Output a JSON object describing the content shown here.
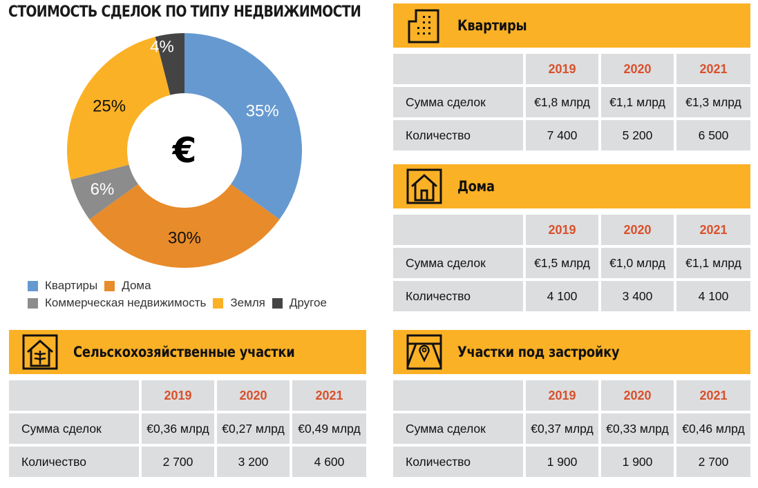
{
  "title": "СТОИМОСТЬ СДЕЛОК ПО ТИПУ НЕДВИЖИМОСТИ",
  "chart_data": {
    "type": "pie",
    "variant": "donut",
    "center_label": "€",
    "categories": [
      "Квартиры",
      "Дома",
      "Коммерческая недвижимость",
      "Земля",
      "Другое"
    ],
    "values": [
      35,
      30,
      6,
      25,
      4
    ],
    "labels": [
      "35%",
      "30%",
      "6%",
      "25%",
      "4%"
    ],
    "colors": [
      "#6699d0",
      "#e88b2a",
      "#8c8c8c",
      "#fbb125",
      "#444444"
    ],
    "label_colors": [
      "#ffffff",
      "#111111",
      "#ffffff",
      "#111111",
      "#ffffff"
    ],
    "legend_position": "bottom"
  },
  "legend": [
    {
      "label": "Квартиры",
      "color": "#6699d0"
    },
    {
      "label": "Дома",
      "color": "#e88b2a"
    },
    {
      "label": "Коммерческая недвижимость",
      "color": "#8c8c8c"
    },
    {
      "label": "Земля",
      "color": "#fbb125"
    },
    {
      "label": "Другое",
      "color": "#444444"
    }
  ],
  "colors": {
    "header_bar": "#fbb125",
    "cell": "#dcdddf",
    "year": "#d9502b"
  },
  "panels": [
    {
      "title": "Квартиры",
      "icon": "apartment-building-icon",
      "years": [
        "2019",
        "2020",
        "2021"
      ],
      "rows": [
        {
          "label": "Сумма сделок",
          "values": [
            "€1,8 млрд",
            "€1,1 млрд",
            "€1,3 млрд"
          ]
        },
        {
          "label": "Количество",
          "values": [
            "7 400",
            "5 200",
            "6 500"
          ]
        }
      ]
    },
    {
      "title": "Дома",
      "icon": "house-icon",
      "years": [
        "2019",
        "2020",
        "2021"
      ],
      "rows": [
        {
          "label": "Сумма сделок",
          "values": [
            "€1,5 млрд",
            "€1,0 млрд",
            "€1,1 млрд"
          ]
        },
        {
          "label": "Количество",
          "values": [
            "4 100",
            "3 400",
            "4 100"
          ]
        }
      ]
    },
    {
      "title": "Сельскохозяйственные участки",
      "icon": "agriculture-house-icon",
      "years": [
        "2019",
        "2020",
        "2021"
      ],
      "rows": [
        {
          "label": "Сумма сделок",
          "values": [
            "€0,36 млрд",
            "€0,27 млрд",
            "€0,49 млрд"
          ]
        },
        {
          "label": "Количество",
          "values": [
            "2 700",
            "3 200",
            "4 600"
          ]
        }
      ]
    },
    {
      "title": "Участки под застройку",
      "icon": "building-plot-location-icon",
      "years": [
        "2019",
        "2020",
        "2021"
      ],
      "rows": [
        {
          "label": "Сумма сделок",
          "values": [
            "€0,37 млрд",
            "€0,33 млрд",
            "€0,46 млрд"
          ]
        },
        {
          "label": "Количество",
          "values": [
            "1 900",
            "1 900",
            "2 700"
          ]
        }
      ]
    }
  ]
}
